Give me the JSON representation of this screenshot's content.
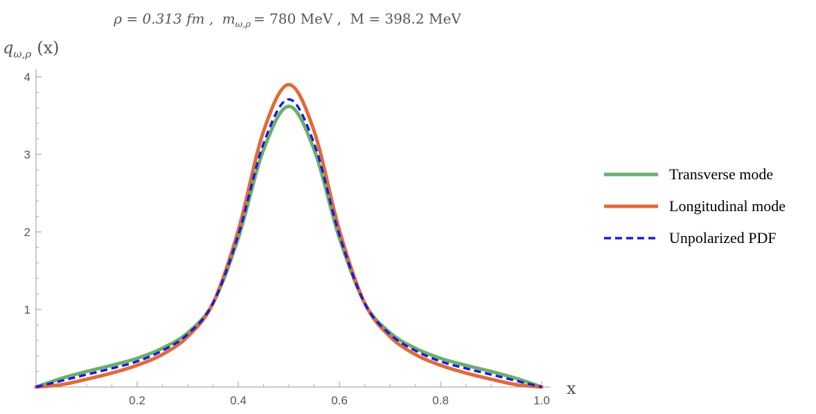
{
  "chart_data": {
    "type": "line",
    "title_parts": {
      "rho": "ρ = 0.313 fm ,",
      "m": "m",
      "m_sub": "ω,ρ",
      "m_val": "= 780 MeV ,",
      "M": "M = 398.2 MeV"
    },
    "ylabel_parts": {
      "q": "q",
      "sub": "ω,ρ",
      "arg": "(x)"
    },
    "xlabel": "x",
    "xlim": [
      0,
      1.0
    ],
    "ylim": [
      0,
      4
    ],
    "xticks": [
      {
        "value": 0.2,
        "label": "0.2"
      },
      {
        "value": 0.4,
        "label": "0.4"
      },
      {
        "value": 0.6,
        "label": "0.6"
      },
      {
        "value": 0.8,
        "label": "0.8"
      },
      {
        "value": 1.0,
        "label": "1.0"
      }
    ],
    "yticks": [
      {
        "value": 1,
        "label": "1"
      },
      {
        "value": 2,
        "label": "2"
      },
      {
        "value": 3,
        "label": "3"
      },
      {
        "value": 4,
        "label": "4"
      }
    ],
    "legend_position": "right",
    "series": [
      {
        "name": "Transverse mode",
        "color": "#6aaf6a",
        "style": "solid",
        "x": [
          0.0,
          0.05,
          0.1,
          0.15,
          0.2,
          0.25,
          0.3,
          0.35,
          0.4,
          0.45,
          0.5,
          0.55,
          0.6,
          0.65,
          0.7,
          0.75,
          0.8,
          0.85,
          0.9,
          0.95,
          1.0
        ],
        "y": [
          0.0,
          0.11,
          0.2,
          0.28,
          0.37,
          0.5,
          0.7,
          1.08,
          1.92,
          3.06,
          3.62,
          3.06,
          1.92,
          1.08,
          0.7,
          0.5,
          0.37,
          0.28,
          0.2,
          0.11,
          0.0
        ]
      },
      {
        "name": "Longitudinal mode",
        "color": "#e06a3b",
        "style": "solid",
        "x": [
          0.0,
          0.05,
          0.1,
          0.15,
          0.2,
          0.25,
          0.3,
          0.35,
          0.4,
          0.45,
          0.5,
          0.55,
          0.6,
          0.65,
          0.7,
          0.75,
          0.8,
          0.85,
          0.9,
          0.95,
          1.0
        ],
        "y": [
          0.0,
          0.03,
          0.1,
          0.18,
          0.28,
          0.42,
          0.65,
          1.08,
          2.02,
          3.3,
          3.9,
          3.3,
          2.02,
          1.08,
          0.65,
          0.42,
          0.28,
          0.18,
          0.1,
          0.03,
          0.0
        ]
      },
      {
        "name": "Unpolarized PDF",
        "color": "#1a1adf",
        "style": "dashed",
        "x": [
          0.0,
          0.05,
          0.1,
          0.15,
          0.2,
          0.25,
          0.3,
          0.35,
          0.4,
          0.45,
          0.5,
          0.55,
          0.6,
          0.65,
          0.7,
          0.75,
          0.8,
          0.85,
          0.9,
          0.95,
          1.0
        ],
        "y": [
          0.0,
          0.08,
          0.16,
          0.24,
          0.33,
          0.47,
          0.68,
          1.08,
          1.96,
          3.14,
          3.71,
          3.14,
          1.96,
          1.08,
          0.68,
          0.47,
          0.33,
          0.24,
          0.16,
          0.08,
          0.0
        ]
      }
    ]
  }
}
